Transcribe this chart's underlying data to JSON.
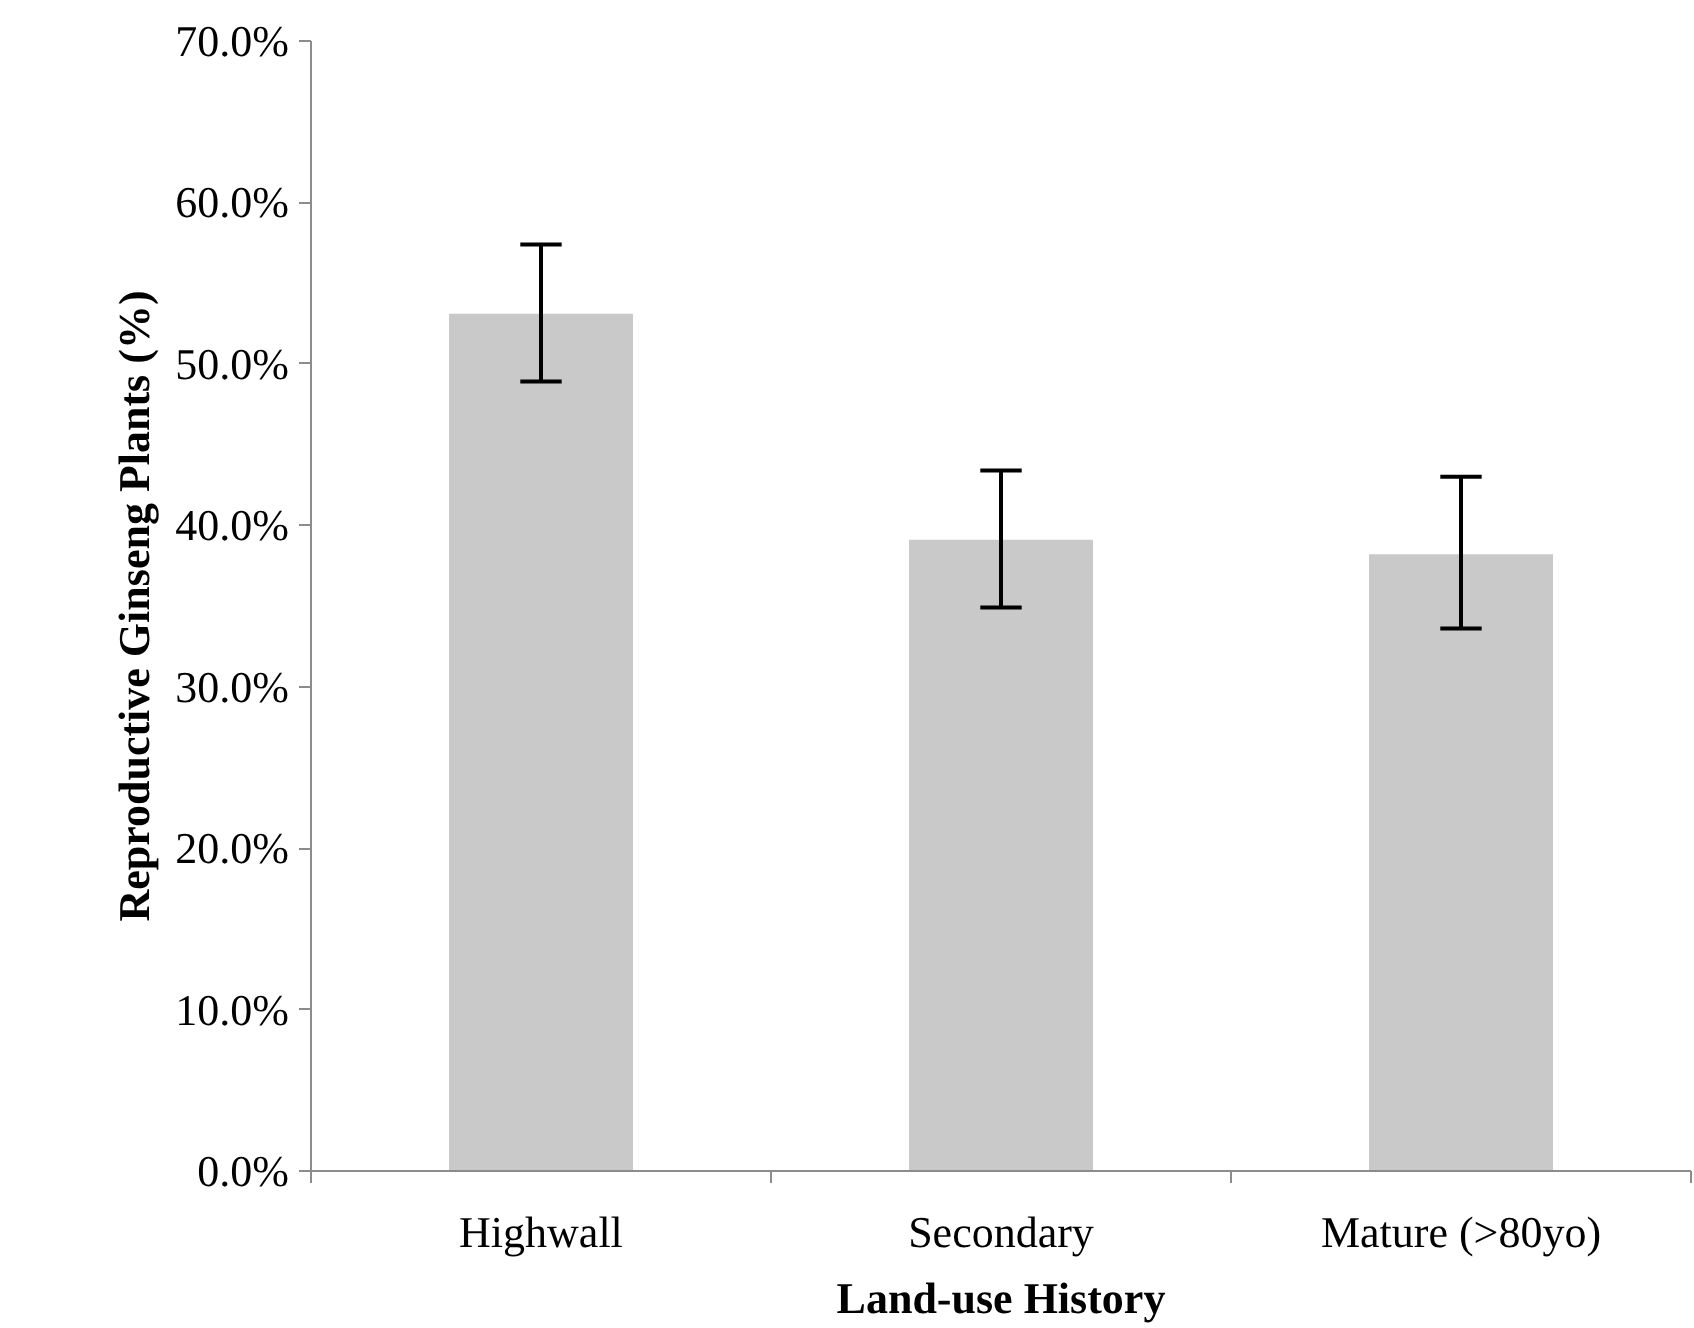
{
  "chart_data": {
    "type": "bar",
    "xlabel": "Land-use History",
    "ylabel": "Reproductive Ginseng Plants (%)",
    "categories": [
      "Highwall",
      "Secondary",
      "Mature (>80yo)"
    ],
    "values": [
      53.1,
      39.1,
      38.2
    ],
    "errors": [
      [
        48.9,
        57.4
      ],
      [
        34.9,
        43.4
      ],
      [
        33.6,
        43.0
      ]
    ],
    "color": "#c9c9c9",
    "ylim": [
      0,
      70
    ],
    "yticks": [
      {
        "value": 0,
        "label": "0.0%"
      },
      {
        "value": 10,
        "label": "10.0%"
      },
      {
        "value": 20,
        "label": "20.0%"
      },
      {
        "value": 30,
        "label": "30.0%"
      },
      {
        "value": 40,
        "label": "40.0%"
      },
      {
        "value": 50,
        "label": "50.0%"
      },
      {
        "value": 60,
        "label": "60.0%"
      },
      {
        "value": 70,
        "label": "70.0%"
      }
    ],
    "grid": false
  }
}
